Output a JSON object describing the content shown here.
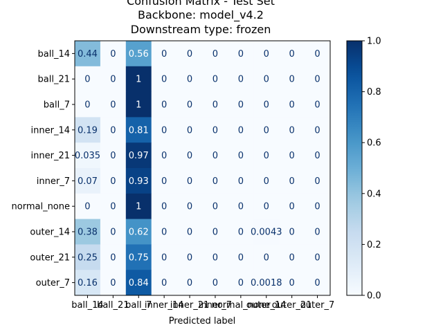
{
  "chart_data": {
    "type": "heatmap",
    "title_lines": [
      "Confusion Matrix - Test Set",
      "Backbone: model_v4.2",
      "Downstream type: frozen"
    ],
    "xlabel": "Predicted label",
    "ylabel": "",
    "labels": [
      "ball_14",
      "ball_21",
      "ball_7",
      "inner_14",
      "inner_21",
      "inner_7",
      "normal_none",
      "outer_14",
      "outer_21",
      "outer_7"
    ],
    "cell_text": [
      [
        "0.44",
        "0",
        "0.56",
        "0",
        "0",
        "0",
        "0",
        "0",
        "0",
        "0"
      ],
      [
        "0",
        "0",
        "1",
        "0",
        "0",
        "0",
        "0",
        "0",
        "0",
        "0"
      ],
      [
        "0",
        "0",
        "1",
        "0",
        "0",
        "0",
        "0",
        "0",
        "0",
        "0"
      ],
      [
        "0.19",
        "0",
        "0.81",
        "0",
        "0",
        "0",
        "0",
        "0",
        "0",
        "0"
      ],
      [
        "0.035",
        "0",
        "0.97",
        "0",
        "0",
        "0",
        "0",
        "0",
        "0",
        "0"
      ],
      [
        "0.07",
        "0",
        "0.93",
        "0",
        "0",
        "0",
        "0",
        "0",
        "0",
        "0"
      ],
      [
        "0",
        "0",
        "1",
        "0",
        "0",
        "0",
        "0",
        "0",
        "0",
        "0"
      ],
      [
        "0.38",
        "0",
        "0.62",
        "0",
        "0",
        "0",
        "0",
        "0.0043",
        "0",
        "0"
      ],
      [
        "0.25",
        "0",
        "0.75",
        "0",
        "0",
        "0",
        "0",
        "0",
        "0",
        "0"
      ],
      [
        "0.16",
        "0",
        "0.84",
        "0",
        "0",
        "0",
        "0",
        "0.0018",
        "0",
        "0"
      ]
    ],
    "colormap": "Blues",
    "colorbar": {
      "range": [
        0,
        1
      ],
      "ticks": [
        "0.0",
        "0.2",
        "0.4",
        "0.6",
        "0.8",
        "1.0"
      ]
    }
  }
}
